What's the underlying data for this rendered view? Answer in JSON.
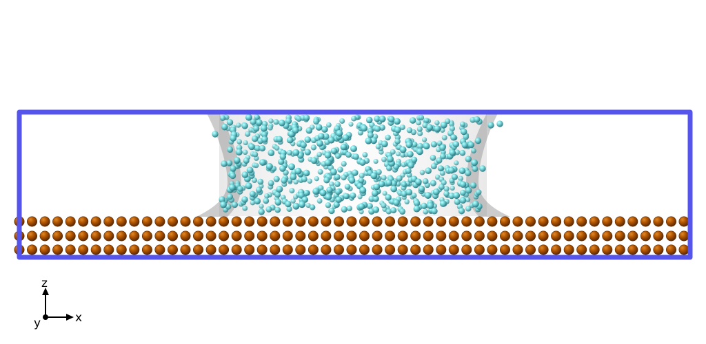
{
  "scene": {
    "description_free": true,
    "colors": {
      "background": "#ffffff",
      "box_edge": "#5555ee",
      "substrate_atom": "#b85a00",
      "substrate_atom_dark": "#6e3300",
      "liquid_atom_light": "#88eeee",
      "liquid_atom_dark": "#2e7f86",
      "meniscus_surface": "#9a9a9a"
    },
    "substrate": {
      "layers": 3,
      "atoms_per_layer": 53
    },
    "liquid": {
      "atom_count": 700
    }
  },
  "axes_triad": {
    "z_label": "z",
    "x_label": "x",
    "y_label": "y",
    "color": "#000000"
  }
}
